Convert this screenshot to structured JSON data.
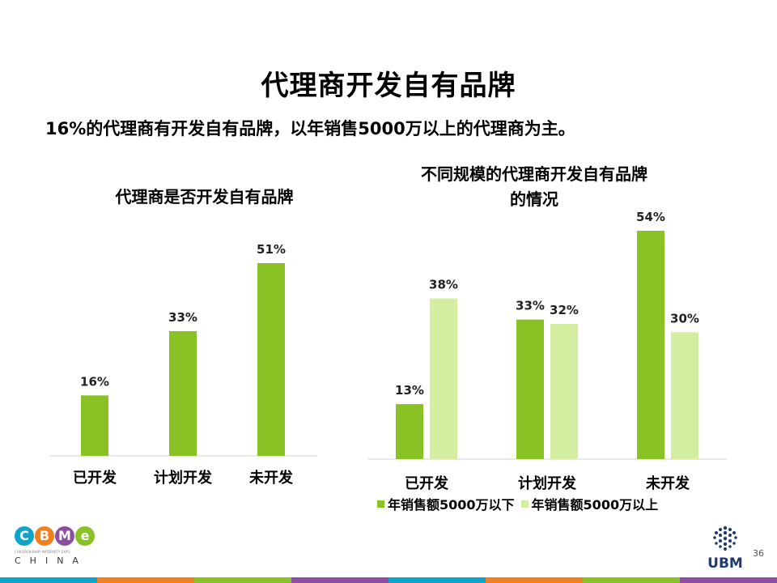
{
  "slide": {
    "title": "代理商开发自有品牌",
    "subtitle": "16%的代理商有开发自有品牌，以年销售5000万以上的代理商为主。",
    "page_number": "36"
  },
  "colors": {
    "dark_green": "#8ac225",
    "light_green": "#d3eda1",
    "axis": "#d0d0d0",
    "stripe": [
      "#0ea5c8",
      "#f07f1e",
      "#8ac225",
      "#8e4fa0",
      "#0ea5c8",
      "#f07f1e",
      "#8ac225",
      "#8e4fa0"
    ]
  },
  "logos": {
    "cbme_letters": [
      "C",
      "B",
      "M",
      "e"
    ],
    "cbme_tagline": "CHILDREN·BABY·MATERNITY EXPO",
    "cbme_china": "CHINA",
    "ubm": "UBM"
  },
  "chart_data": [
    {
      "type": "bar",
      "title": "代理商是否开发自有品牌",
      "categories": [
        "已开发",
        "计划开发",
        "未开发"
      ],
      "values": [
        16,
        33,
        51
      ],
      "value_labels": [
        "16%",
        "33%",
        "51%"
      ],
      "ylim": [
        0,
        60
      ],
      "grid": false
    },
    {
      "type": "bar",
      "title": "不同规模的代理商开发自有品牌的情况",
      "title_lines": [
        "不同规模的代理商开发自有品牌",
        "的情况"
      ],
      "categories": [
        "已开发",
        "计划开发",
        "未开发"
      ],
      "series": [
        {
          "name": "年销售额5000万以下",
          "values": [
            13,
            33,
            54
          ],
          "value_labels": [
            "13%",
            "33%",
            "54%"
          ]
        },
        {
          "name": "年销售额5000万以上",
          "values": [
            38,
            32,
            30
          ],
          "value_labels": [
            "38%",
            "32%",
            "30%"
          ]
        }
      ],
      "ylim": [
        0,
        60
      ],
      "grid": false,
      "legend": "bottom"
    }
  ]
}
